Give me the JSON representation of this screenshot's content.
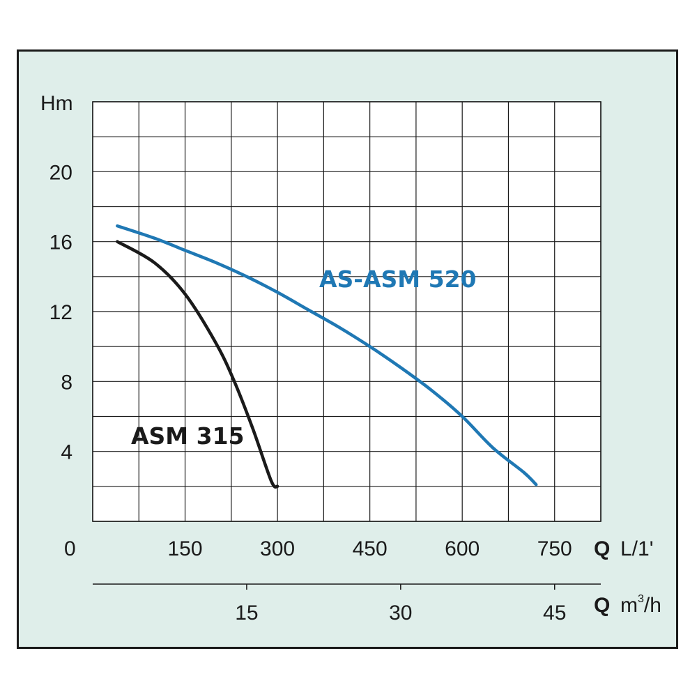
{
  "chart_data": {
    "type": "line",
    "ylabel": "Hm",
    "y_ticks": [
      "4",
      "8",
      "12",
      "16",
      "20"
    ],
    "ylim": [
      0,
      24
    ],
    "x_origin_label": "0",
    "x_ticks": [
      "150",
      "300",
      "450",
      "600",
      "750"
    ],
    "xlim": [
      0,
      825
    ],
    "x_axis_q_label": "Q",
    "x_unit": "L/1'",
    "x2_ticks": [
      "15",
      "30",
      "45"
    ],
    "x2_axis_q_label": "Q",
    "x2_unit_base": "m",
    "x2_unit_sup": "3",
    "x2_unit_rest": "/h",
    "grid": true,
    "series": [
      {
        "name": "ASM 315",
        "color": "#1a1a1a",
        "x": [
          40,
          100,
          150,
          200,
          230,
          260,
          290,
          300
        ],
        "y": [
          16,
          14.8,
          13,
          10.2,
          8,
          5.3,
          2.3,
          2
        ]
      },
      {
        "name": "AS-ASM 520",
        "color": "#1f78b4",
        "x": [
          40,
          100,
          150,
          200,
          250,
          300,
          350,
          400,
          450,
          500,
          550,
          600,
          650,
          700,
          720
        ],
        "y": [
          16.9,
          16.2,
          15.5,
          14.8,
          14,
          13.1,
          12.1,
          11.1,
          10,
          8.8,
          7.5,
          6,
          4.2,
          2.8,
          2.1
        ]
      }
    ]
  }
}
